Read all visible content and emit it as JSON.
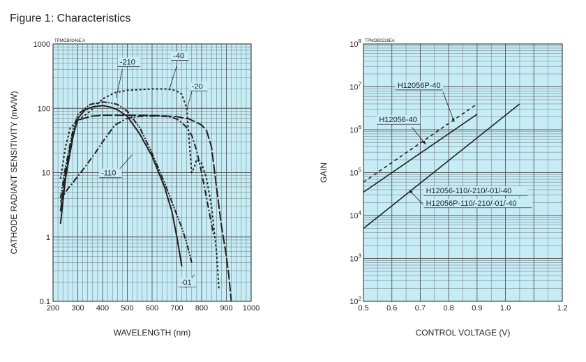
{
  "figure_title": "Figure 1: Characteristics",
  "colors": {
    "plot_bg": "#c6ecf6",
    "grid": "#555555",
    "ink": "#231f20"
  },
  "chart_data": [
    {
      "type": "line",
      "code": "TPMOB0246E A",
      "xlabel": "WAVELENGTH (nm)",
      "ylabel": "CATHODE RADIANT SENSITIVITY (mA/W)",
      "xlim": [
        200,
        1000
      ],
      "ylim": [
        0.1,
        1000
      ],
      "yscale": "log",
      "grid": true,
      "x_ticks": [
        "200",
        "300",
        "400",
        "500",
        "600",
        "700",
        "800",
        "900",
        "1000"
      ],
      "y_ticks": [
        "0.1",
        "1",
        "10",
        "100",
        "1000"
      ],
      "series": [
        {
          "name": "-01",
          "style": "solid",
          "dashes": "",
          "label_pos": {
            "x": 715,
            "y": 0.18
          },
          "leader": [
            [
              735,
              0.16
            ],
            [
              770,
              0.26
            ]
          ],
          "x": [
            230,
            250,
            280,
            300,
            330,
            360,
            400,
            430,
            460,
            500,
            550,
            600,
            650,
            680,
            700,
            710,
            720
          ],
          "y": [
            1.6,
            8,
            35,
            70,
            95,
            105,
            110,
            105,
            95,
            75,
            40,
            18,
            6,
            2.5,
            1,
            0.6,
            0.35
          ]
        },
        {
          "name": "-110",
          "style": "dash-dot",
          "dashes": "9 3 2 3",
          "label_pos": {
            "x": 395,
            "y": 9
          },
          "leader": [
            [
              445,
              9
            ],
            [
              520,
              19
            ]
          ],
          "x": [
            230,
            250,
            280,
            320,
            370,
            400,
            450,
            500,
            550,
            600,
            650,
            680,
            700,
            720,
            740,
            760,
            780,
            800,
            820,
            850
          ],
          "y": [
            3.5,
            5,
            7,
            11,
            20,
            30,
            55,
            70,
            75,
            76,
            75,
            72,
            68,
            60,
            50,
            38,
            22,
            10,
            4,
            1
          ]
        },
        {
          "name": "-20",
          "style": "long-dash",
          "dashes": "14 3",
          "label_pos": {
            "x": 760,
            "y": 200
          },
          "leader": [
            [
              760,
              180
            ],
            [
              740,
              95
            ]
          ],
          "x": [
            230,
            250,
            280,
            300,
            350,
            400,
            500,
            600,
            650,
            700,
            750,
            780,
            800,
            820,
            840,
            860,
            880,
            900,
            910,
            920
          ],
          "y": [
            2.5,
            10,
            40,
            65,
            75,
            78,
            78,
            77,
            76,
            74,
            68,
            60,
            55,
            45,
            25,
            6,
            1.5,
            0.5,
            0.25,
            0.1
          ]
        },
        {
          "name": "-210",
          "style": "dash-double-dot",
          "dashes": "8 2 2 2 2 2",
          "label_pos": {
            "x": 470,
            "y": 480
          },
          "leader": [
            [
              480,
              400
            ],
            [
              455,
              145
            ]
          ],
          "x": [
            230,
            250,
            280,
            300,
            350,
            400,
            430,
            460,
            500,
            550,
            600,
            650,
            700,
            720,
            740,
            760
          ],
          "y": [
            4,
            12,
            45,
            80,
            115,
            125,
            122,
            115,
            90,
            50,
            20,
            7,
            2.2,
            1.4,
            0.8,
            0.4
          ]
        },
        {
          "name": "-40",
          "style": "dotted",
          "dashes": "3 3",
          "label_pos": {
            "x": 685,
            "y": 600
          },
          "leader": [
            [
              700,
              460
            ],
            [
              670,
              200
            ]
          ],
          "x": [
            230,
            250,
            270,
            300,
            350,
            400,
            450,
            500,
            550,
            600,
            650,
            680,
            700,
            720,
            740,
            750,
            760,
            770,
            780,
            800,
            820,
            840,
            860,
            870
          ],
          "y": [
            8,
            25,
            50,
            65,
            90,
            140,
            175,
            190,
            195,
            200,
            200,
            195,
            185,
            165,
            100,
            30,
            10,
            12,
            16,
            14,
            8,
            3,
            0.6,
            0.15
          ]
        }
      ]
    },
    {
      "type": "line",
      "code": "TPMOB0226EA",
      "xlabel": "CONTROL VOLTAGE (V)",
      "ylabel": "GAIN",
      "xlim": [
        0.5,
        1.2
      ],
      "ylim": [
        100,
        100000000
      ],
      "yscale": "log",
      "grid": true,
      "x_ticks": [
        "0.5",
        "0.6",
        "0.7",
        "0.8",
        "0.9",
        "1.0",
        "1.2"
      ],
      "y_tick_exponents": [
        "2",
        "3",
        "4",
        "5",
        "6",
        "7",
        "8"
      ],
      "series": [
        {
          "name": "H12056P-40",
          "style": "dashed",
          "dashes": "5 4",
          "x": [
            0.5,
            0.9
          ],
          "y": [
            60000,
            4000000
          ],
          "callout_pos": {
            "x": 0.62,
            "y": 9500000
          },
          "leader": [
            [
              0.78,
              7500000
            ],
            [
              0.82,
              1500000
            ]
          ]
        },
        {
          "name": "H12056-40",
          "style": "solid",
          "dashes": "",
          "x": [
            0.5,
            0.9
          ],
          "y": [
            35000,
            2300000
          ],
          "callout_pos": {
            "x": 0.555,
            "y": 1500000
          },
          "leader": [
            [
              0.67,
              1150000
            ],
            [
              0.72,
              450000
            ]
          ]
        },
        {
          "name": "H12056-110/-210/-01/-40",
          "style": "solid",
          "dashes": "",
          "x": [
            0.5,
            1.05
          ],
          "y": [
            5000,
            4000000
          ],
          "callout_pos": {
            "x": 0.72,
            "y": 33000
          },
          "leader": [
            [
              0.71,
              18000
            ],
            [
              0.66,
              40000
            ]
          ]
        },
        {
          "name": "H12056P-110/-210/-01/-40",
          "style": "solid",
          "dashes": "",
          "x": [],
          "y": [],
          "callout_pos": {
            "x": 0.72,
            "y": 17000
          },
          "leader": []
        }
      ]
    }
  ]
}
